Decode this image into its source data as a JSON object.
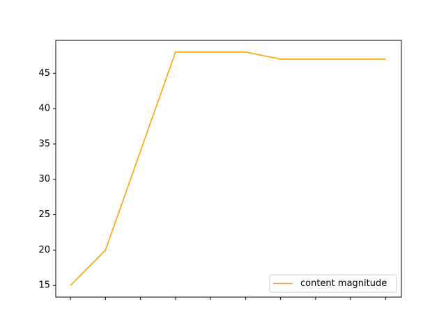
{
  "chart_data": {
    "type": "line",
    "title": "",
    "xlabel": "",
    "ylabel": "",
    "x": [
      0,
      1,
      2,
      3,
      4,
      5,
      6,
      7,
      8,
      9
    ],
    "x_tick_labels_visible": false,
    "xlim": [
      -0.42,
      9.45
    ],
    "ylim": [
      13.35,
      49.65
    ],
    "yticks": [
      15,
      20,
      25,
      30,
      35,
      40,
      45
    ],
    "grid": false,
    "legend_position": "lower right",
    "series": [
      {
        "name": "content magnitude",
        "color": "#ffa500",
        "values": [
          15,
          20,
          34,
          48,
          48,
          48,
          47,
          47,
          47,
          47
        ]
      }
    ]
  }
}
